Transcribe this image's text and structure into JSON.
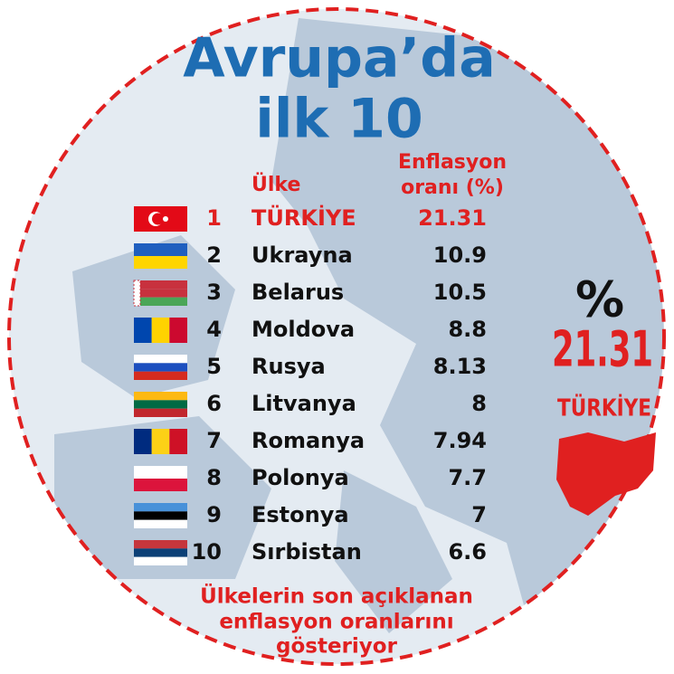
{
  "title": {
    "line1": "Avrupa’da",
    "line2": "ilk 10"
  },
  "table": {
    "headers": {
      "country": "Ülke",
      "rate": [
        "Enflasyon",
        "oranı (%)"
      ]
    },
    "rows": [
      [
        "1",
        "TÜRKİYE",
        "21.31"
      ],
      [
        "2",
        "Ukrayna",
        "10.9"
      ],
      [
        "3",
        "Belarus",
        "10.5"
      ],
      [
        "4",
        "Moldova",
        "8.8"
      ],
      [
        "5",
        "Rusya",
        "8.13"
      ],
      [
        "6",
        "Litvanya",
        "8"
      ],
      [
        "7",
        "Romanya",
        "7.94"
      ],
      [
        "8",
        "Polonya",
        "7.7"
      ],
      [
        "9",
        "Estonya",
        "7"
      ],
      [
        "10",
        "Sırbistan",
        "6.6"
      ]
    ]
  },
  "callout": {
    "symbol": "%",
    "value": "21.31",
    "country": "TÜRKİYE"
  },
  "footer": [
    "Ülkelerin son açıklanan",
    "enflasyon oranlarını",
    "gösteriyor"
  ]
}
